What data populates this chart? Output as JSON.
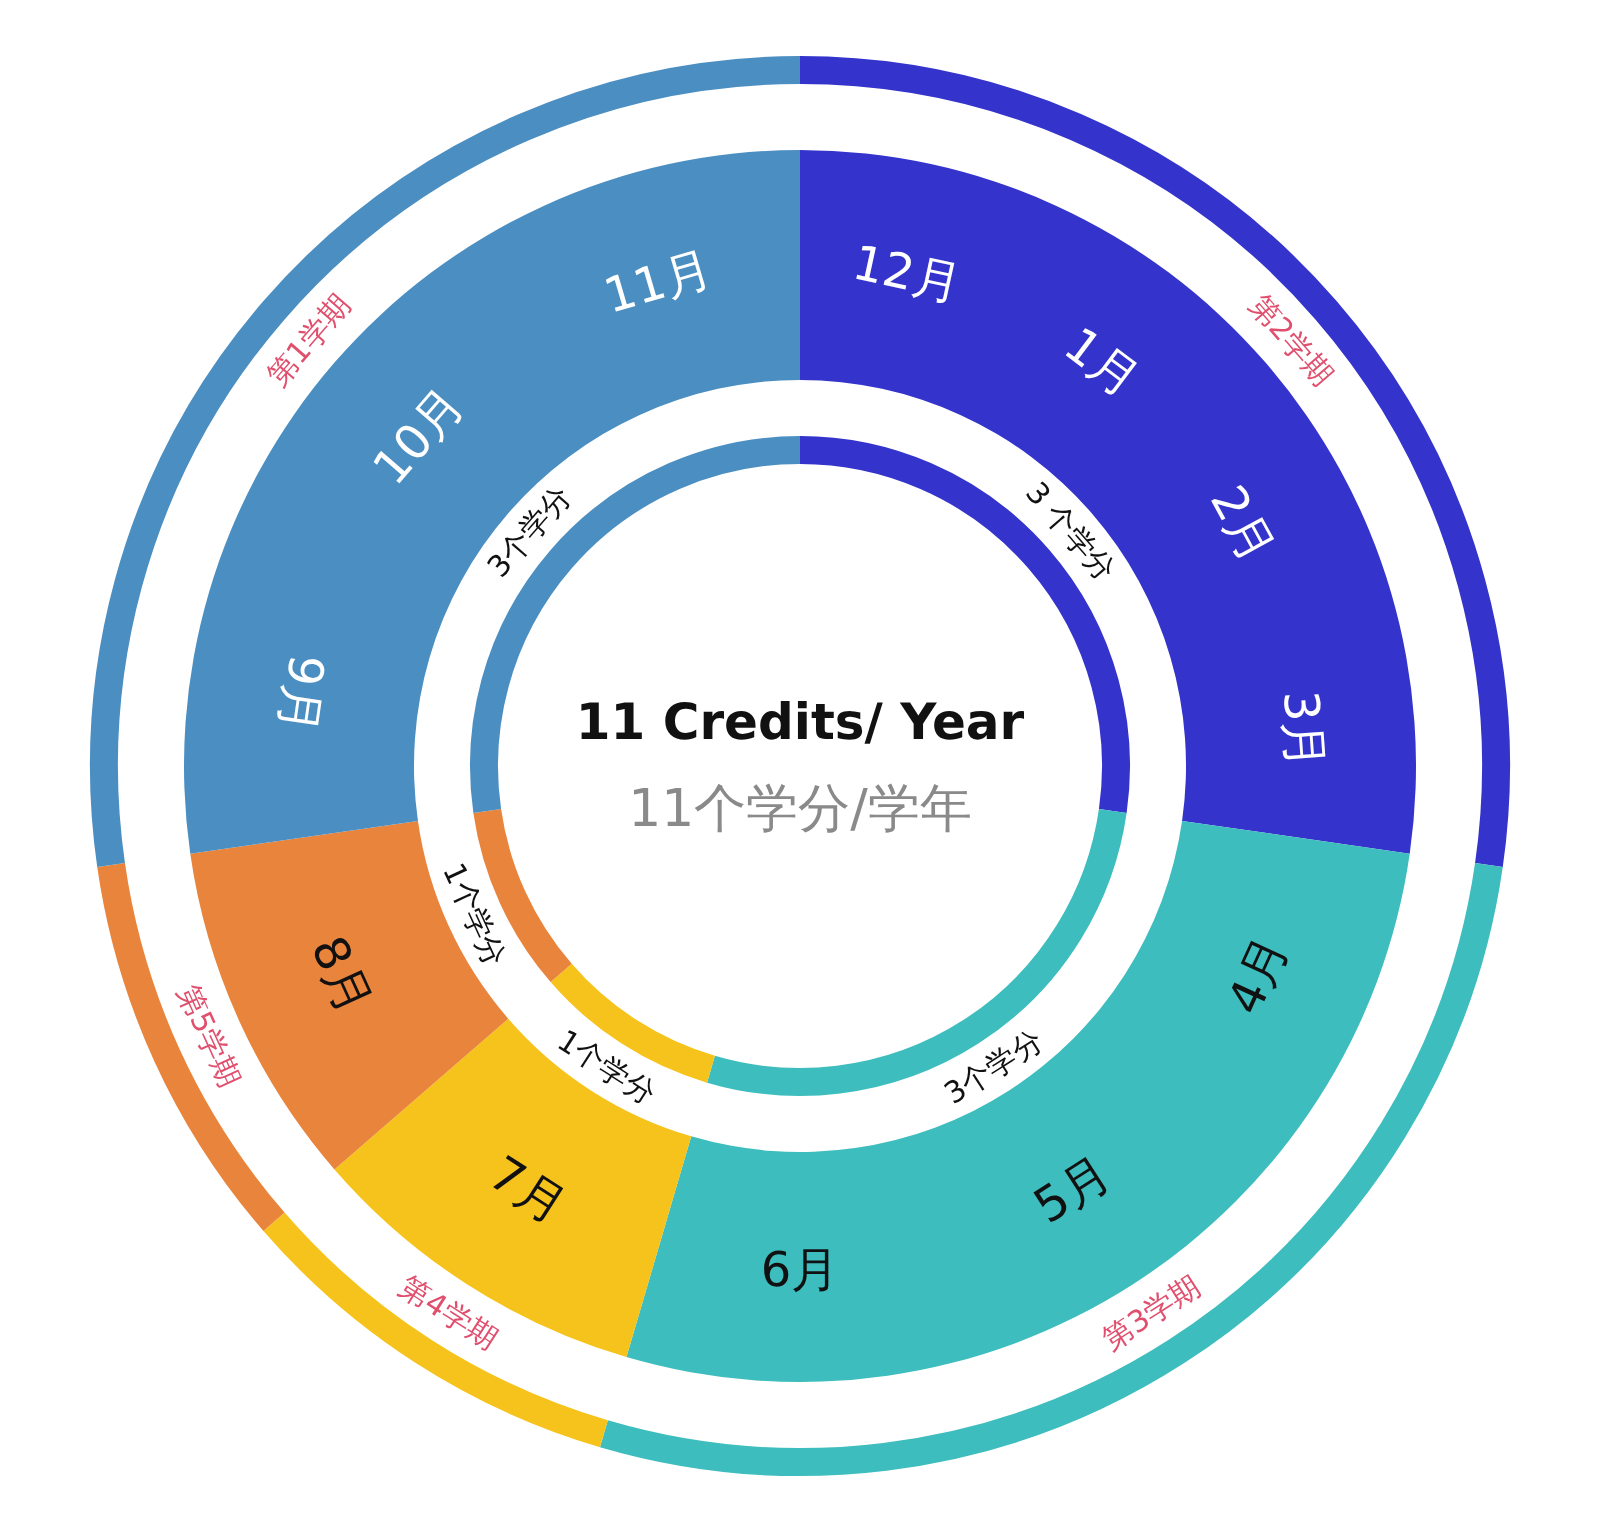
{
  "chart_data": {
    "type": "donut",
    "title": "11 Credits/ Year",
    "subtitle": "11个学分/学年",
    "categories": [
      "第2学期",
      "第3学期",
      "第4学期",
      "第5学期",
      "第1学期"
    ],
    "colors": [
      "#3434cc",
      "#3dbdbd",
      "#f6c31c",
      "#e9843c",
      "#4b8ec1"
    ],
    "values": [
      3,
      3,
      1,
      1,
      3
    ],
    "value_labels": [
      "3 个学分",
      "3个学分",
      "1个学分",
      "1个学分",
      "3个学分"
    ],
    "annotations": [
      {
        "text": "12月",
        "x": "第2学期"
      },
      {
        "text": "1月",
        "x": "第2学期"
      },
      {
        "text": "2月",
        "x": "第2学期"
      },
      {
        "text": "3月",
        "x": "第2学期"
      },
      {
        "text": "4月",
        "x": "第3学期"
      },
      {
        "text": "5月",
        "x": "第3学期"
      },
      {
        "text": "6月",
        "x": "第3学期"
      },
      {
        "text": "7月",
        "x": "第4学期"
      },
      {
        "text": "8月",
        "x": "第5学期"
      },
      {
        "text": "9月",
        "x": "第1学期"
      },
      {
        "text": "10月",
        "x": "第1学期"
      },
      {
        "text": "11月",
        "x": "第1学期"
      }
    ]
  }
}
